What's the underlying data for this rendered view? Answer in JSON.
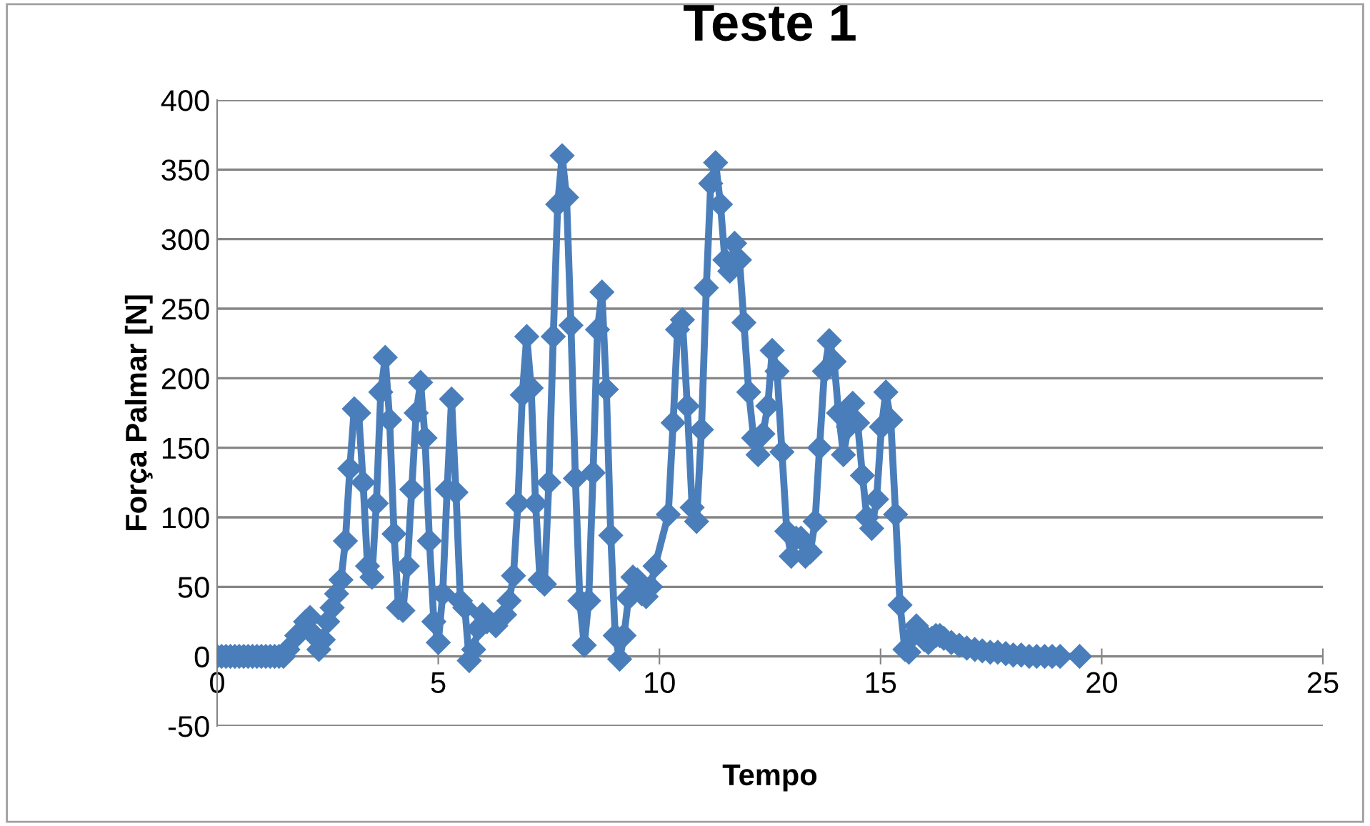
{
  "chart_data": {
    "type": "line",
    "title": "Teste 1",
    "xlabel": "Tempo",
    "ylabel": "Força Palmar [N]",
    "xlim": [
      0,
      25
    ],
    "xticks": [
      0,
      5,
      10,
      15,
      20,
      25
    ],
    "ylim": [
      -50,
      400
    ],
    "yticks": [
      -50,
      0,
      50,
      100,
      150,
      200,
      250,
      300,
      350,
      400
    ],
    "grid": "y",
    "legend": false,
    "marker": "diamond",
    "line_style": "solid",
    "series": [
      {
        "color": "#4a7ebb",
        "x": [
          0,
          0.1,
          0.2,
          0.3,
          0.4,
          0.5,
          0.6,
          0.7,
          0.8,
          0.9,
          1.0,
          1.1,
          1.2,
          1.3,
          1.4,
          1.5,
          1.6,
          1.8,
          2.0,
          2.1,
          2.2,
          2.3,
          2.4,
          2.5,
          2.6,
          2.7,
          2.8,
          2.9,
          3.0,
          3.1,
          3.2,
          3.3,
          3.4,
          3.5,
          3.6,
          3.7,
          3.8,
          3.9,
          4.0,
          4.1,
          4.2,
          4.3,
          4.4,
          4.5,
          4.6,
          4.7,
          4.8,
          4.9,
          5.0,
          5.1,
          5.2,
          5.3,
          5.4,
          5.5,
          5.6,
          5.7,
          5.8,
          5.9,
          6.0,
          6.1,
          6.3,
          6.5,
          6.6,
          6.7,
          6.8,
          6.9,
          7.0,
          7.1,
          7.2,
          7.3,
          7.4,
          7.5,
          7.6,
          7.7,
          7.8,
          7.9,
          8.0,
          8.1,
          8.2,
          8.3,
          8.4,
          8.5,
          8.6,
          8.7,
          8.8,
          8.9,
          9.0,
          9.1,
          9.2,
          9.3,
          9.4,
          9.5,
          9.6,
          9.7,
          9.8,
          9.9,
          10.2,
          10.31,
          10.41,
          10.52,
          10.63,
          10.74,
          10.84,
          10.95,
          11.06,
          11.16,
          11.27,
          11.38,
          11.48,
          11.59,
          11.7,
          11.81,
          11.91,
          12.02,
          12.13,
          12.23,
          12.34,
          12.45,
          12.55,
          12.66,
          12.77,
          12.88,
          12.98,
          13.09,
          13.2,
          13.3,
          13.41,
          13.52,
          13.62,
          13.73,
          13.84,
          13.95,
          14.05,
          14.16,
          14.27,
          14.37,
          14.48,
          14.59,
          14.69,
          14.8,
          14.91,
          15.02,
          15.12,
          15.23,
          15.34,
          15.44,
          15.55,
          15.64,
          15.73,
          15.81,
          15.9,
          15.99,
          16.08,
          16.16,
          16.25,
          16.34,
          16.43,
          16.6,
          16.78,
          16.95,
          17.13,
          17.3,
          17.48,
          17.65,
          17.83,
          18.0,
          18.18,
          18.36,
          18.53,
          18.71,
          18.88,
          19.06,
          19.5
        ],
        "values": [
          0,
          0,
          0,
          0,
          0,
          0,
          0,
          0,
          0,
          0,
          0,
          0,
          0,
          0,
          0,
          0,
          5,
          15,
          25,
          28,
          15,
          5,
          12,
          25,
          35,
          45,
          55,
          83,
          135,
          178,
          175,
          125,
          65,
          57,
          110,
          190,
          215,
          170,
          88,
          35,
          33,
          65,
          120,
          175,
          197,
          157,
          83,
          25,
          10,
          45,
          120,
          185,
          118,
          40,
          35,
          -3,
          5,
          20,
          30,
          25,
          22,
          30,
          40,
          58,
          110,
          188,
          230,
          193,
          110,
          55,
          52,
          125,
          230,
          325,
          360,
          330,
          238,
          128,
          40,
          8,
          40,
          132,
          235,
          262,
          192,
          87,
          15,
          -2,
          15,
          42,
          57,
          55,
          45,
          43,
          50,
          65,
          102,
          168,
          235,
          242,
          180,
          107,
          97,
          163,
          265,
          340,
          355,
          325,
          285,
          277,
          297,
          285,
          240,
          190,
          157,
          145,
          160,
          180,
          220,
          205,
          147,
          90,
          72,
          85,
          85,
          72,
          75,
          97,
          150,
          205,
          227,
          212,
          175,
          145,
          165,
          182,
          168,
          130,
          100,
          92,
          113,
          165,
          190,
          170,
          102,
          37,
          5,
          3,
          15,
          22,
          18,
          12,
          10,
          13,
          15,
          15,
          13,
          10,
          8,
          6,
          5,
          4,
          3,
          3,
          2,
          1,
          1,
          0,
          0,
          0,
          0,
          0,
          0
        ]
      }
    ]
  }
}
